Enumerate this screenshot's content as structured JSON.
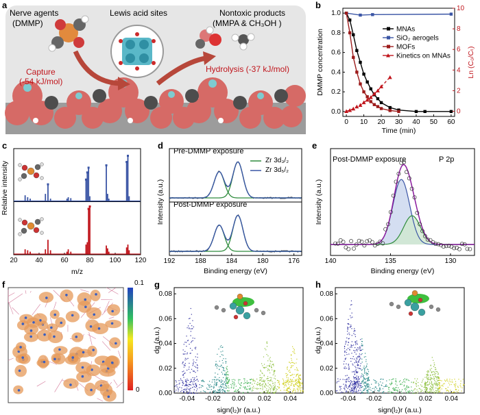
{
  "panels": {
    "a": {
      "label": "a",
      "title_left_1": "Nerve agents",
      "title_left_2": "(DMMP)",
      "title_center": "Lewis acid sites",
      "title_right_1": "Nontoxic products",
      "title_right_2": "(MMPA & CH₃OH )",
      "capture_1": "Capture",
      "capture_2": "(-54 kJ/mol)",
      "hydrolysis": "Hydrolysis (-37 kJ/mol)"
    },
    "b": {
      "label": "b"
    },
    "c": {
      "label": "c"
    },
    "d": {
      "label": "d",
      "top_title": "Pre-DMMP exposure",
      "bottom_title": "Post-DMMP exposure",
      "legend_1": "Zr 3d₃/₂",
      "legend_2": "Zr 3d₅/₂"
    },
    "e": {
      "label": "e",
      "title": "Post-DMMP exposure",
      "tag": "P 2p"
    },
    "f": {
      "label": "f",
      "scale_max": "0.1",
      "scale_min": "0"
    },
    "g": {
      "label": "g"
    },
    "h": {
      "label": "h"
    }
  },
  "colors": {
    "blue": "#3a55a5",
    "red": "#c0141b",
    "darkred": "#9c1b1b",
    "green": "#2e8b3c",
    "purple": "#8b1a9e",
    "orange": "#e59a5a"
  },
  "chart_data": [
    {
      "id": "b",
      "type": "line",
      "xlabel": "Time (min)",
      "ylabel": "DMMP concentration",
      "y2label": "Ln (C₀/Cₜ)",
      "xlim": [
        -2,
        62
      ],
      "ylim": [
        -0.05,
        1.05
      ],
      "y2lim": [
        -0.5,
        10
      ],
      "xticks": [
        "0",
        "10",
        "20",
        "30",
        "40",
        "50",
        "60"
      ],
      "yticks": [
        "0.0",
        "0.2",
        "0.4",
        "0.6",
        "0.8",
        "1.0"
      ],
      "y2ticks": [
        "0",
        "2",
        "4",
        "6",
        "8",
        "10"
      ],
      "legend": [
        "MNAs",
        "SiO₂ aerogels",
        "MOFs",
        "Kinetics on MNAs"
      ],
      "series": [
        {
          "name": "MNAs",
          "x": [
            0,
            2,
            4,
            6,
            8,
            10,
            12,
            14,
            16,
            18,
            20,
            25,
            30,
            40,
            45,
            60
          ],
          "y": [
            1.0,
            0.93,
            0.78,
            0.62,
            0.5,
            0.38,
            0.3,
            0.23,
            0.17,
            0.13,
            0.09,
            0.04,
            0.015,
            0.0,
            0.0,
            0.0
          ]
        },
        {
          "name": "SiO2 aerogels",
          "x": [
            0,
            8,
            15,
            60
          ],
          "y": [
            1.0,
            0.98,
            0.985,
            0.99
          ]
        },
        {
          "name": "MOFs",
          "x": [
            0,
            2,
            4,
            6,
            8,
            10,
            12,
            14,
            16,
            18,
            20,
            25,
            30
          ],
          "y": [
            1.0,
            0.8,
            0.55,
            0.4,
            0.28,
            0.2,
            0.15,
            0.1,
            0.07,
            0.05,
            0.03,
            0.01,
            0.0
          ]
        },
        {
          "name": "Kinetics on MNAs",
          "x": [
            0,
            2,
            4,
            6,
            8,
            10,
            12,
            14,
            16,
            18,
            20,
            25
          ],
          "y": [
            0.0,
            0.1,
            0.25,
            0.45,
            0.6,
            0.85,
            1.1,
            1.35,
            1.7,
            2.0,
            2.4,
            3.3
          ]
        }
      ]
    },
    {
      "id": "c",
      "type": "bar",
      "xlabel": "m/z",
      "ylabel": "Relative intensity",
      "xlim": [
        20,
        120
      ],
      "xticks": [
        "20",
        "40",
        "60",
        "80",
        "100",
        "120"
      ],
      "series": [
        {
          "name": "top",
          "x": [
            29,
            31,
            33,
            45,
            47,
            49,
            62,
            63,
            65,
            77,
            78,
            79,
            80,
            93,
            94,
            95,
            109,
            110,
            111
          ],
          "y": [
            0.12,
            0.08,
            0.05,
            0.15,
            0.35,
            0.05,
            0.05,
            0.08,
            0.06,
            0.45,
            0.6,
            0.7,
            0.1,
            0.75,
            0.15,
            0.05,
            0.82,
            0.95,
            0.1
          ]
        },
        {
          "name": "bottom",
          "x": [
            29,
            31,
            33,
            45,
            47,
            49,
            62,
            63,
            65,
            77,
            78,
            79,
            80,
            93,
            94,
            95,
            109,
            110,
            111
          ],
          "y": [
            0.1,
            0.08,
            0.05,
            0.1,
            0.3,
            0.08,
            0.05,
            0.1,
            0.05,
            0.2,
            0.25,
            0.95,
            1.0,
            0.18,
            0.12,
            0.05,
            0.14,
            0.2,
            0.08
          ]
        }
      ]
    },
    {
      "id": "d",
      "type": "line",
      "xlabel": "Binding energy (eV)",
      "ylabel": "Intensity (a.u.)",
      "xlim": [
        192,
        175
      ],
      "xticks": [
        "192",
        "188",
        "184",
        "180",
        "176"
      ],
      "peaks": [
        185.6,
        183.2
      ]
    },
    {
      "id": "e",
      "type": "line",
      "xlabel": "Binding energy (eV)",
      "ylabel": "Intensity (a.u.)",
      "xlim": [
        140,
        128
      ],
      "xticks": [
        "140",
        "135",
        "130"
      ],
      "peaks": [
        134.1,
        133.2
      ]
    },
    {
      "id": "g",
      "type": "scatter",
      "xlabel": "sign(l₂)r (a.u.)",
      "ylabel": "dg (a.u.)",
      "xlim": [
        -0.05,
        0.05
      ],
      "ylim": [
        0,
        0.085
      ],
      "xticks": [
        "-0.04",
        "-0.02",
        "0.00",
        "0.02",
        "0.04"
      ],
      "yticks": [
        "0.00",
        "0.02",
        "0.04",
        "0.06",
        "0.08"
      ]
    },
    {
      "id": "h",
      "type": "scatter",
      "xlabel": "sign(l₂)r (a.u.)",
      "ylabel": "dg (a.u.)",
      "xlim": [
        -0.05,
        0.05
      ],
      "ylim": [
        0,
        0.085
      ],
      "xticks": [
        "-0.04",
        "-0.02",
        "0.00",
        "0.02",
        "0.04"
      ],
      "yticks": [
        "0.00",
        "0.02",
        "0.04",
        "0.06",
        "0.08"
      ]
    }
  ]
}
